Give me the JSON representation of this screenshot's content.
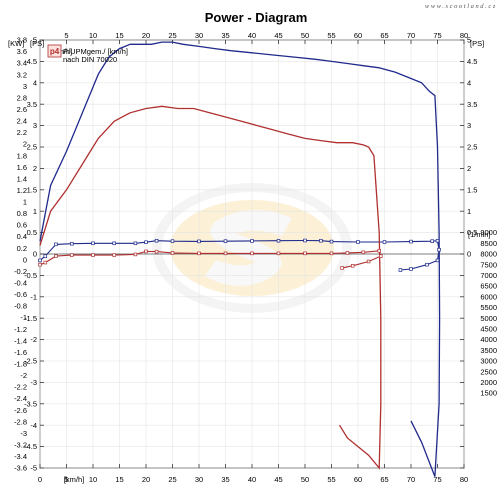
{
  "watermark": "www.scootland.cz",
  "chart_data": {
    "type": "line",
    "title": "Power - Diagram",
    "x_axis": {
      "label_top": "[km/h]",
      "label_bottom": "[km/h]",
      "range": [
        0,
        80
      ],
      "ticks": [
        0,
        5,
        10,
        15,
        20,
        25,
        30,
        35,
        40,
        45,
        50,
        55,
        60,
        65,
        70,
        75,
        80
      ]
    },
    "y_left_kw": {
      "label": "[KW]",
      "range": [
        -3.6,
        3.8
      ],
      "ticks": [
        3.8,
        3.6,
        3.4,
        3.2,
        3,
        2.8,
        2.6,
        2.4,
        2.2,
        2,
        1.8,
        1.6,
        1.4,
        1.2,
        1,
        0.8,
        0.6,
        0.4,
        0.2,
        0,
        -0.2,
        -0.4,
        -0.6,
        -0.8,
        -1,
        -1.2,
        -1.4,
        -1.6,
        -1.8,
        -2,
        -2.2,
        -2.4,
        -2.6,
        -2.8,
        -3,
        -3.2,
        -3.4,
        -3.6
      ]
    },
    "y_left_ps": {
      "label": "[PS]",
      "range": [
        -5,
        5
      ],
      "ticks": [
        5,
        4.5,
        4,
        3.5,
        3,
        2.5,
        2,
        1.5,
        1,
        0.5,
        0,
        -0.5,
        -1,
        -1.5,
        -2,
        -2.5,
        -3,
        -3.5,
        -4,
        -4.5,
        -5
      ]
    },
    "y_right_ps": {
      "label": "[PS]",
      "range": [
        -5,
        5
      ],
      "ticks": [
        5,
        4.5,
        4,
        3.5,
        3,
        2.5,
        2,
        1.5,
        1,
        0.5,
        0,
        -0.5,
        -1,
        -1.5,
        -2,
        -2.5,
        -3,
        -3.5,
        -4,
        -4.5,
        -5
      ]
    },
    "y_right_rpm": {
      "label": "[1/min]",
      "range": [
        1000,
        9000
      ],
      "ticks": [
        9000,
        8500,
        8000,
        7500,
        7000,
        6500,
        6000,
        5500,
        5000,
        4500,
        4000,
        3500,
        3000,
        2500,
        2000,
        1500
      ]
    },
    "legend": {
      "badge": "p4",
      "line1": "P/UPMgem./ [km/h]",
      "line2": "nach DIN 70020"
    },
    "series": [
      {
        "color": "#1f2a8c",
        "power_ps": [
          [
            0,
            0.3
          ],
          [
            2,
            1.6
          ],
          [
            5,
            2.4
          ],
          [
            8,
            3.3
          ],
          [
            11,
            4.2
          ],
          [
            13,
            4.6
          ],
          [
            15,
            4.8
          ],
          [
            17,
            4.9
          ],
          [
            19,
            4.9
          ],
          [
            21,
            4.9
          ],
          [
            23,
            4.95
          ],
          [
            25,
            4.95
          ],
          [
            27,
            4.9
          ],
          [
            30,
            4.85
          ],
          [
            33,
            4.8
          ],
          [
            36,
            4.75
          ],
          [
            40,
            4.7
          ],
          [
            44,
            4.65
          ],
          [
            48,
            4.6
          ],
          [
            52,
            4.55
          ],
          [
            55,
            4.5
          ],
          [
            58,
            4.45
          ],
          [
            61,
            4.4
          ],
          [
            64,
            4.35
          ],
          [
            67,
            4.25
          ],
          [
            70,
            4.1
          ],
          [
            72,
            4.0
          ],
          [
            73.5,
            3.8
          ],
          [
            74.5,
            3.7
          ],
          [
            75,
            2.5
          ],
          [
            75.3,
            0.5
          ],
          [
            75.4,
            -1.5
          ],
          [
            75.3,
            -3.5
          ],
          [
            74.5,
            -5.2
          ],
          [
            72,
            -4.4
          ],
          [
            70,
            -3.9
          ]
        ],
        "rpm": [
          [
            0,
            7700
          ],
          [
            1,
            7900
          ],
          [
            3,
            8450
          ],
          [
            6,
            8480
          ],
          [
            10,
            8500
          ],
          [
            14,
            8500
          ],
          [
            18,
            8500
          ],
          [
            20,
            8550
          ],
          [
            22,
            8620
          ],
          [
            25,
            8600
          ],
          [
            30,
            8590
          ],
          [
            35,
            8600
          ],
          [
            40,
            8610
          ],
          [
            45,
            8620
          ],
          [
            50,
            8630
          ],
          [
            53,
            8620
          ],
          [
            55,
            8580
          ],
          [
            60,
            8560
          ],
          [
            65,
            8560
          ],
          [
            70,
            8580
          ],
          [
            74,
            8600
          ],
          [
            75,
            8620
          ],
          [
            75.3,
            8200
          ],
          [
            75,
            7700
          ],
          [
            73,
            7500
          ],
          [
            70,
            7300
          ],
          [
            68,
            7250
          ]
        ]
      },
      {
        "color": "#b03030",
        "power_ps": [
          [
            0,
            0.2
          ],
          [
            2,
            1.0
          ],
          [
            5,
            1.5
          ],
          [
            8,
            2.1
          ],
          [
            11,
            2.7
          ],
          [
            14,
            3.1
          ],
          [
            17,
            3.3
          ],
          [
            20,
            3.4
          ],
          [
            23,
            3.45
          ],
          [
            26,
            3.4
          ],
          [
            29,
            3.4
          ],
          [
            32,
            3.3
          ],
          [
            35,
            3.2
          ],
          [
            38,
            3.1
          ],
          [
            41,
            3.0
          ],
          [
            44,
            2.9
          ],
          [
            47,
            2.8
          ],
          [
            50,
            2.7
          ],
          [
            53,
            2.65
          ],
          [
            56,
            2.6
          ],
          [
            59,
            2.6
          ],
          [
            61,
            2.55
          ],
          [
            62,
            2.5
          ],
          [
            63,
            2.3
          ],
          [
            64,
            0.5
          ],
          [
            64.3,
            -1.5
          ],
          [
            64.3,
            -3.5
          ],
          [
            64,
            -5.0
          ],
          [
            62,
            -4.7
          ],
          [
            58,
            -4.3
          ],
          [
            56.5,
            -4.0
          ]
        ],
        "rpm": [
          [
            0,
            7500
          ],
          [
            1,
            7600
          ],
          [
            3,
            7900
          ],
          [
            6,
            7950
          ],
          [
            10,
            7950
          ],
          [
            14,
            7950
          ],
          [
            18,
            7980
          ],
          [
            20,
            8120
          ],
          [
            22,
            8110
          ],
          [
            25,
            8050
          ],
          [
            30,
            8030
          ],
          [
            35,
            8030
          ],
          [
            40,
            8030
          ],
          [
            45,
            8030
          ],
          [
            50,
            8030
          ],
          [
            55,
            8030
          ],
          [
            58,
            8050
          ],
          [
            61,
            8080
          ],
          [
            64,
            8150
          ],
          [
            64.3,
            7900
          ],
          [
            62,
            7650
          ],
          [
            59,
            7450
          ],
          [
            57,
            7350
          ]
        ]
      }
    ]
  }
}
